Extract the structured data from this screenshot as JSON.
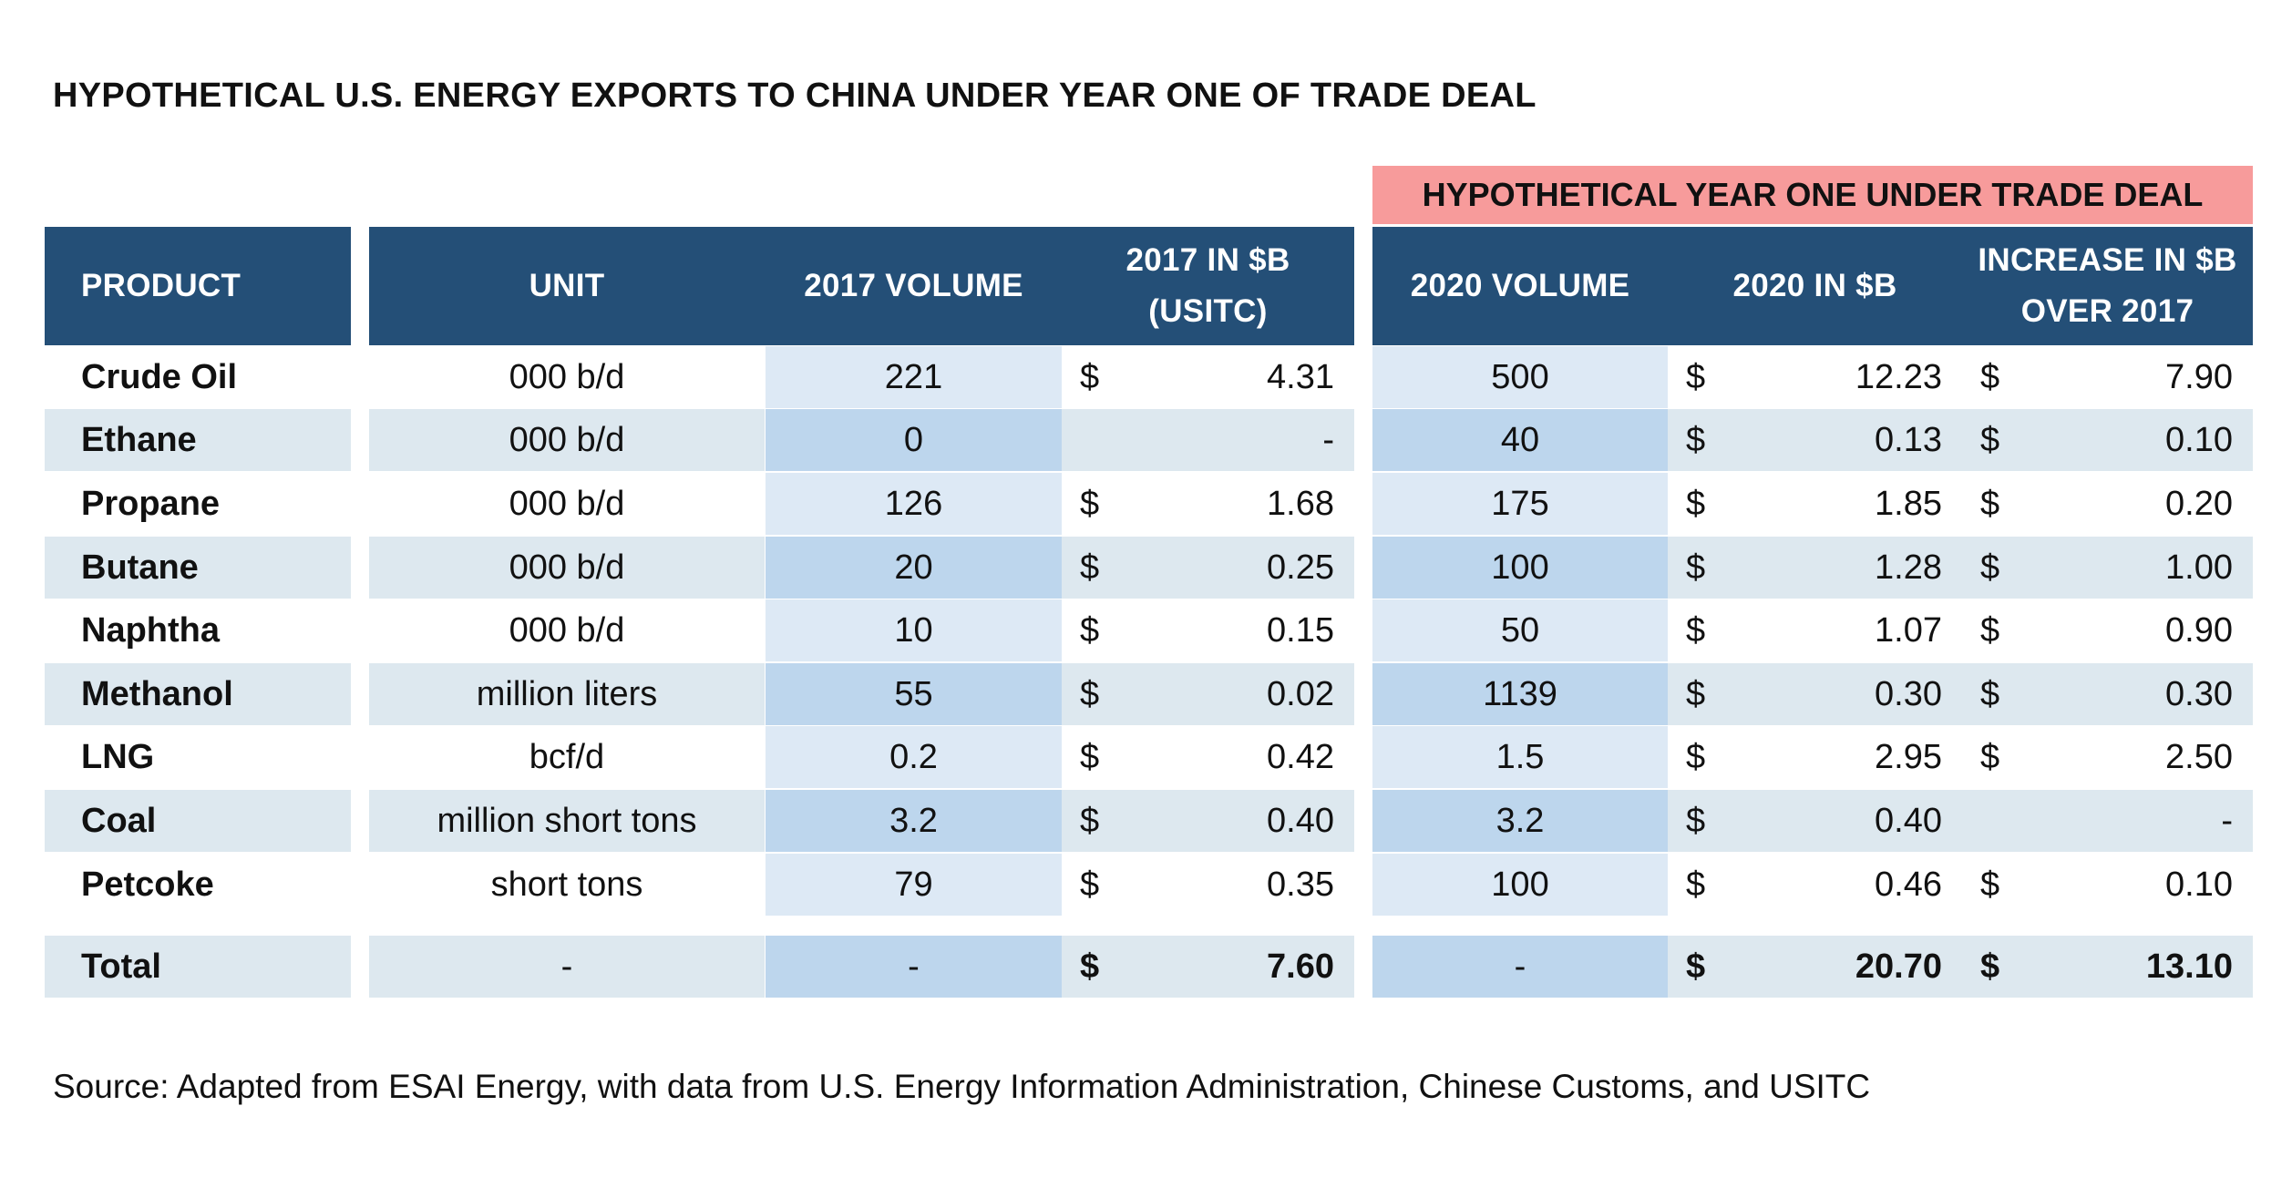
{
  "title": "HYPOTHETICAL U.S. ENERGY EXPORTS TO CHINA UNDER YEAR ONE OF TRADE DEAL",
  "group_header": "HYPOTHETICAL YEAR ONE UNDER TRADE DEAL",
  "headers": {
    "product": "PRODUCT",
    "unit": "UNIT",
    "vol2017": "2017 VOLUME",
    "usd2017_line1": "2017 IN $B",
    "usd2017_line2": "(USITC)",
    "vol2020": "2020 VOLUME",
    "usd2020": "2020 IN $B",
    "increase_line1": "INCREASE IN  $B",
    "increase_line2": "OVER 2017"
  },
  "rows": [
    {
      "product": "Crude Oil",
      "unit": "000 b/d",
      "vol2017": "221",
      "usd2017_sign": "$",
      "usd2017": "4.31",
      "vol2020": "500",
      "usd2020_sign": "$",
      "usd2020": "12.23",
      "inc_sign": "$",
      "inc": "7.90"
    },
    {
      "product": "Ethane",
      "unit": "000 b/d",
      "vol2017": "0",
      "usd2017_sign": "",
      "usd2017": "-",
      "vol2020": "40",
      "usd2020_sign": "$",
      "usd2020": "0.13",
      "inc_sign": "$",
      "inc": "0.10"
    },
    {
      "product": "Propane",
      "unit": "000 b/d",
      "vol2017": "126",
      "usd2017_sign": "$",
      "usd2017": "1.68",
      "vol2020": "175",
      "usd2020_sign": "$",
      "usd2020": "1.85",
      "inc_sign": "$",
      "inc": "0.20"
    },
    {
      "product": "Butane",
      "unit": "000 b/d",
      "vol2017": "20",
      "usd2017_sign": "$",
      "usd2017": "0.25",
      "vol2020": "100",
      "usd2020_sign": "$",
      "usd2020": "1.28",
      "inc_sign": "$",
      "inc": "1.00"
    },
    {
      "product": "Naphtha",
      "unit": "000 b/d",
      "vol2017": "10",
      "usd2017_sign": "$",
      "usd2017": "0.15",
      "vol2020": "50",
      "usd2020_sign": "$",
      "usd2020": "1.07",
      "inc_sign": "$",
      "inc": "0.90"
    },
    {
      "product": "Methanol",
      "unit": "million liters",
      "vol2017": "55",
      "usd2017_sign": "$",
      "usd2017": "0.02",
      "vol2020": "1139",
      "usd2020_sign": "$",
      "usd2020": "0.30",
      "inc_sign": "$",
      "inc": "0.30"
    },
    {
      "product": "LNG",
      "unit": "bcf/d",
      "vol2017": "0.2",
      "usd2017_sign": "$",
      "usd2017": "0.42",
      "vol2020": "1.5",
      "usd2020_sign": "$",
      "usd2020": "2.95",
      "inc_sign": "$",
      "inc": "2.50"
    },
    {
      "product": "Coal",
      "unit": "million short tons",
      "vol2017": "3.2",
      "usd2017_sign": "$",
      "usd2017": "0.40",
      "vol2020": "3.2",
      "usd2020_sign": "$",
      "usd2020": "0.40",
      "inc_sign": "",
      "inc": "-"
    },
    {
      "product": "Petcoke",
      "unit": "short tons",
      "vol2017": "79",
      "usd2017_sign": "$",
      "usd2017": "0.35",
      "vol2020": "100",
      "usd2020_sign": "$",
      "usd2020": "0.46",
      "inc_sign": "$",
      "inc": "0.10"
    }
  ],
  "total": {
    "product": "Total",
    "unit": "-",
    "vol2017": "-",
    "usd2017_sign": "$",
    "usd2017": "7.60",
    "vol2020": "-",
    "usd2020_sign": "$",
    "usd2020": "20.70",
    "inc_sign": "$",
    "inc": "13.10"
  },
  "source": "Source:  Adapted from ESAI Energy, with data from U.S. Energy Information Administration, Chinese Customs, and USITC",
  "colors": {
    "header_bg": "#244f77",
    "group_header_bg": "#f79b9b",
    "stripe_light": "#dde8ef",
    "vol_light": "#dde9f5",
    "vol_dark": "#bdd6ed",
    "white": "#ffffff"
  }
}
